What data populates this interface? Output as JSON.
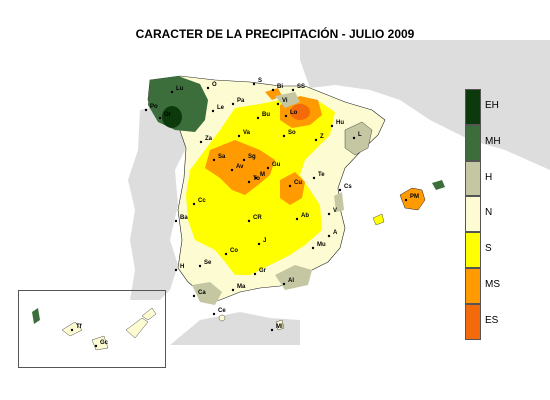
{
  "title": "CARACTER DE LA PRECIPITACIÓN - JULIO 2009",
  "legend": [
    {
      "code": "EH",
      "color": "#0d3a0d"
    },
    {
      "code": "MH",
      "color": "#3b6e3b"
    },
    {
      "code": "H",
      "color": "#c4c7a2"
    },
    {
      "code": "N",
      "color": "#fdfbd2"
    },
    {
      "code": "S",
      "color": "#ffff00"
    },
    {
      "code": "MS",
      "color": "#ff9a00"
    },
    {
      "code": "ES",
      "color": "#f26a0a"
    }
  ],
  "colors": {
    "land_background": "#dddddd",
    "sea": "#ffffff"
  },
  "stations": [
    {
      "code": "Lu"
    },
    {
      "code": "O"
    },
    {
      "code": "S"
    },
    {
      "code": "Bi"
    },
    {
      "code": "SS"
    },
    {
      "code": "Vi"
    },
    {
      "code": "Pa"
    },
    {
      "code": "Lo"
    },
    {
      "code": "Le"
    },
    {
      "code": "Or"
    },
    {
      "code": "Po"
    },
    {
      "code": "Bu"
    },
    {
      "code": "Hu"
    },
    {
      "code": "Za"
    },
    {
      "code": "Va"
    },
    {
      "code": "So"
    },
    {
      "code": "Z"
    },
    {
      "code": "L"
    },
    {
      "code": "Sa"
    },
    {
      "code": "Sg"
    },
    {
      "code": "Av"
    },
    {
      "code": "Gu"
    },
    {
      "code": "M"
    },
    {
      "code": "Te"
    },
    {
      "code": "Cs"
    },
    {
      "code": "Cu"
    },
    {
      "code": "To"
    },
    {
      "code": "Cc"
    },
    {
      "code": "Ba"
    },
    {
      "code": "CR"
    },
    {
      "code": "Ab"
    },
    {
      "code": "V"
    },
    {
      "code": "Co"
    },
    {
      "code": "A"
    },
    {
      "code": "Mu"
    },
    {
      "code": "H"
    },
    {
      "code": "Se"
    },
    {
      "code": "J"
    },
    {
      "code": "Gr"
    },
    {
      "code": "Al"
    },
    {
      "code": "Ma"
    },
    {
      "code": "Ca"
    },
    {
      "code": "Ce"
    },
    {
      "code": "Ml"
    },
    {
      "code": "PM"
    },
    {
      "code": "Tf"
    },
    {
      "code": "Gc"
    }
  ]
}
